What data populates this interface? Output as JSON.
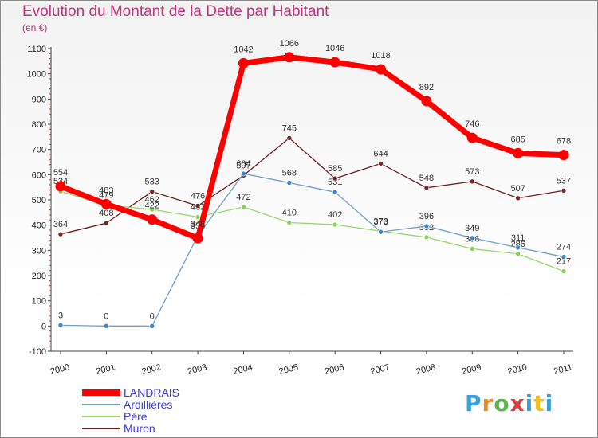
{
  "chart_data": {
    "type": "line",
    "title": "Evolution du Montant de la Dette par Habitant",
    "unit_label": "(en €)",
    "x": [
      "2000",
      "2001",
      "2002",
      "2003",
      "2004",
      "2005",
      "2006",
      "2007",
      "2008",
      "2009",
      "2010",
      "2011"
    ],
    "y_ticks": [
      "-100",
      "0",
      "100",
      "200",
      "300",
      "400",
      "500",
      "600",
      "700",
      "800",
      "900",
      "1000",
      "1100"
    ],
    "ylim": [
      -100,
      1100
    ],
    "grid": false,
    "legend_position": "bottom-left",
    "series": [
      {
        "name": "Muron",
        "color": "#6b1e1e",
        "marker": "#7a2323",
        "stroke": 1.3,
        "radius": 3,
        "values": [
          364,
          408,
          533,
          476,
          597,
          745,
          585,
          644,
          548,
          573,
          507,
          537
        ],
        "labels": [
          "364",
          "408",
          "533",
          "476",
          "597",
          "745",
          "585",
          "644",
          "548",
          "573",
          "507",
          "537"
        ],
        "label_dy": [
          -9,
          -9,
          -9,
          -9,
          -9,
          -9,
          -9,
          -9,
          -9,
          -9,
          -9,
          -9
        ]
      },
      {
        "name": "Péré",
        "color": "#9ad668",
        "marker": "#8ccf5a",
        "stroke": 1.3,
        "radius": 3,
        "values": [
          534,
          479,
          462,
          432,
          472,
          410,
          402,
          376,
          352,
          306,
          286,
          217
        ],
        "labels": [
          "534",
          "479",
          "462",
          "432",
          "472",
          "410",
          "402",
          "376",
          "352",
          "306",
          "286",
          "217"
        ],
        "label_dy": [
          -9,
          -9,
          -9,
          -9,
          -9,
          -9,
          -9,
          -9,
          -9,
          -9,
          -9,
          -9
        ]
      },
      {
        "name": "Ardillières",
        "color": "#6f9ec9",
        "marker": "#3c86c6",
        "stroke": 1.3,
        "radius": 3,
        "values": [
          3,
          0,
          0,
          358,
          604,
          568,
          531,
          373,
          396,
          349,
          311,
          274
        ],
        "labels": [
          "3",
          "0",
          "0",
          "358",
          "604",
          "568",
          "531",
          "373",
          "396",
          "349",
          "311",
          "274"
        ],
        "label_dy": [
          -9,
          -9,
          -9,
          -9,
          -9,
          -9,
          -9,
          -9,
          -9,
          -9,
          -9,
          -9
        ]
      },
      {
        "name": "LANDRAIS",
        "color": "#ff0000",
        "marker": "#ff0000",
        "stroke": 7,
        "radius": 6.5,
        "values": [
          554,
          483,
          422,
          348,
          1042,
          1066,
          1046,
          1018,
          892,
          746,
          685,
          678
        ],
        "labels": [
          "554",
          "483",
          "422",
          "348",
          "1042",
          "1066",
          "1046",
          "1018",
          "892",
          "746",
          "685",
          "678"
        ],
        "label_dy": [
          -14,
          -14,
          -14,
          -14,
          -14,
          -14,
          -14,
          -14,
          -14,
          -14,
          -14,
          -14
        ]
      }
    ],
    "legend_order": [
      "LANDRAIS",
      "Ardillières",
      "Péré",
      "Muron"
    ]
  },
  "branding": {
    "logo_text": "Proxiti"
  }
}
